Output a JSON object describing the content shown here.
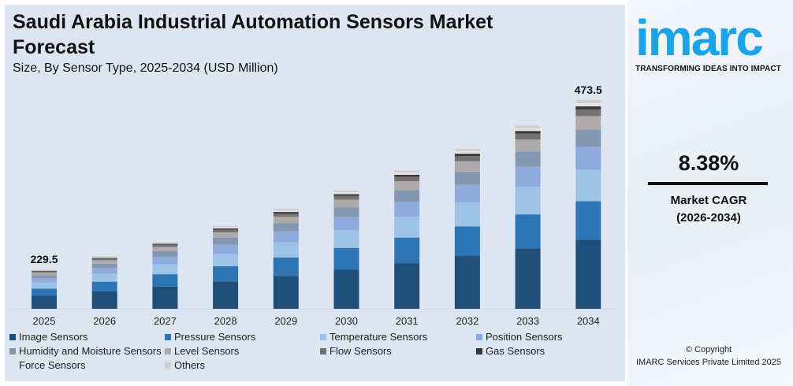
{
  "header": {
    "title": "Saudi Arabia Industrial Automation Sensors Market Forecast",
    "subtitle": "Size, By Sensor Type, 2025-2034 (USD Million)"
  },
  "brand": {
    "logo": "imarc",
    "tagline": "TRANSFORMING IDEAS INTO IMPACT",
    "color": "#1aa3e8"
  },
  "cagr": {
    "value": "8.38%",
    "label": "Market CAGR",
    "period": "(2026-2034)"
  },
  "copyright": {
    "line1": "© Copyright",
    "line2": "IMARC Services Private Limited 2025"
  },
  "chart_data": {
    "type": "bar",
    "stacked": true,
    "title": "Saudi Arabia Industrial Automation Sensors Market Forecast",
    "categories": [
      "2025",
      "2026",
      "2027",
      "2028",
      "2029",
      "2030",
      "2031",
      "2032",
      "2033",
      "2034"
    ],
    "totals": [
      229.5,
      248.7,
      269.6,
      292.2,
      316.7,
      343.2,
      372.0,
      403.2,
      436.9,
      473.5
    ],
    "total_labels": {
      "0": "229.5",
      "9": "473.5"
    },
    "ylim": [
      173,
      480
    ],
    "grid": false,
    "legend_position": "bottom",
    "series": [
      {
        "name": "Image Sensors",
        "share": 0.33,
        "color": "#1f4e79"
      },
      {
        "name": "Pressure Sensors",
        "share": 0.185,
        "color": "#2e75b6"
      },
      {
        "name": "Temperature Sensors",
        "share": 0.15,
        "color": "#9dc3e6"
      },
      {
        "name": "Position Sensors",
        "share": 0.11,
        "color": "#8faadc"
      },
      {
        "name": "Humidity and Moisture Sensors",
        "share": 0.083,
        "color": "#8497b0"
      },
      {
        "name": "Level Sensors",
        "share": 0.065,
        "color": "#aeaaaa"
      },
      {
        "name": "Flow Sensors",
        "share": 0.032,
        "color": "#767171"
      },
      {
        "name": "Gas Sensors",
        "share": 0.015,
        "color": "#3a3838"
      },
      {
        "name": "Force Sensors",
        "share": 0.015,
        "color": "#e7e6e6"
      },
      {
        "name": "Others",
        "share": 0.015,
        "color": "#d0cece"
      }
    ]
  }
}
